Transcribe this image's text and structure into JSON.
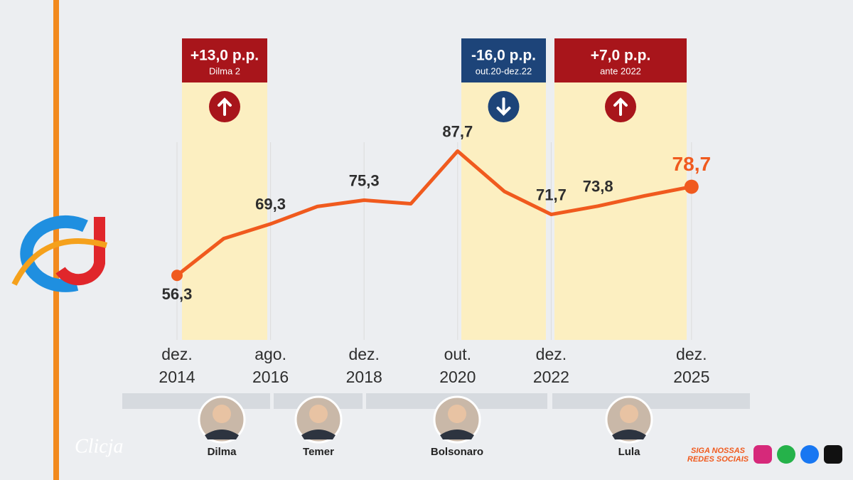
{
  "chart_data": {
    "type": "line",
    "categories": [
      "dez. 2014",
      null,
      "ago. 2016",
      null,
      "dez. 2018",
      null,
      "out. 2020",
      null,
      "dez. 2022",
      null,
      null,
      "dez. 2025"
    ],
    "series": [
      {
        "name": null,
        "color": "#f05a1e",
        "values": [
          56.3,
          65.6,
          69.3,
          73.7,
          75.3,
          74.4,
          87.7,
          77.5,
          71.7,
          73.8,
          76.4,
          78.7
        ],
        "value_labels": [
          "56,3",
          null,
          "69,3",
          null,
          "75,3",
          null,
          "87,7",
          null,
          "71,7",
          "73,8",
          null,
          "78,7"
        ]
      }
    ],
    "ylim": [
      40,
      100
    ],
    "annotations": [
      {
        "title": "+13,0 p.p.",
        "subtitle": "Dilma 2",
        "color": "#a8151b"
      },
      {
        "title": "-16,0 p.p.",
        "subtitle": "out.20-dez.22",
        "color": "#1d4479"
      },
      {
        "title": "+7,0 p.p.",
        "subtitle": "ante 2022",
        "color": "#a8151b"
      }
    ],
    "presidents": [
      "Dilma",
      "Temer",
      "Bolsonaro",
      "Lula"
    ]
  },
  "brand": {
    "name": "Clicja",
    "social": [
      "SIGA NOSSAS",
      "REDES SOCIAIS"
    ]
  }
}
